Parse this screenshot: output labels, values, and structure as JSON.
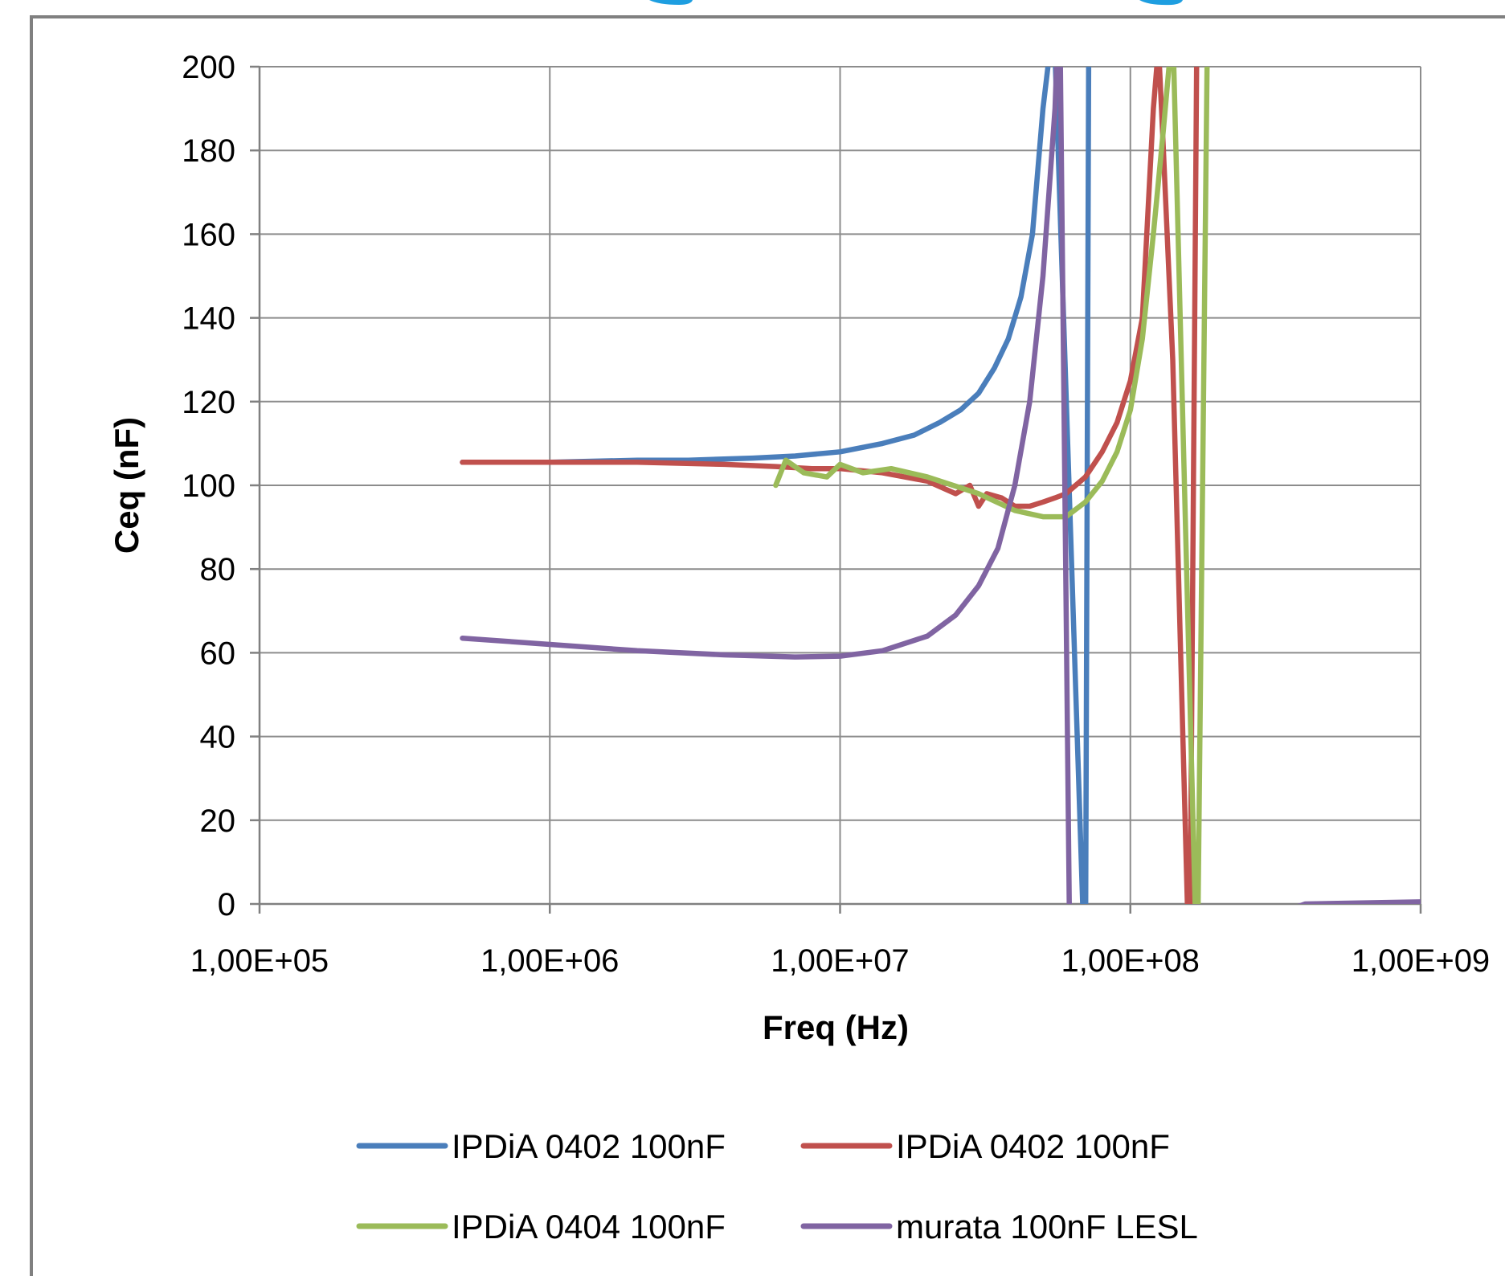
{
  "chart_data": {
    "type": "line",
    "title": "",
    "xlabel": "Freq (Hz)",
    "ylabel": "Ceq (nF)",
    "x_scale": "log",
    "xlim": [
      100000,
      1000000000
    ],
    "ylim": [
      0,
      200
    ],
    "x_ticks": [
      100000,
      1000000,
      10000000,
      100000000,
      1000000000
    ],
    "x_tick_labels": [
      "1,00E+05",
      "1,00E+06",
      "1,00E+07",
      "1,00E+08",
      "1,00E+09"
    ],
    "y_ticks": [
      0,
      20,
      40,
      60,
      80,
      100,
      120,
      140,
      160,
      180,
      200
    ],
    "y_tick_labels": [
      "0",
      "20",
      "40",
      "60",
      "80",
      "100",
      "120",
      "140",
      "160",
      "180",
      "200"
    ],
    "grid": true,
    "legend_position": "bottom",
    "series": [
      {
        "name": "IPDiA 0402 100nF",
        "color": "#4a7ebb",
        "x": [
          500000,
          700000,
          1000000,
          2000000,
          3000000,
          5000000,
          7000000,
          10000000,
          14000000,
          18000000,
          22000000,
          26000000,
          30000000,
          34000000,
          38000000,
          42000000,
          46000000,
          50000000,
          52000000,
          54000000,
          70000000,
          72000000
        ],
        "y": [
          105.5,
          105.5,
          105.5,
          106,
          106,
          106.5,
          107,
          108,
          110,
          112,
          115,
          118,
          122,
          128,
          135,
          145,
          160,
          190,
          200,
          220,
          -20,
          220
        ]
      },
      {
        "name": "IPDiA 0402 100nF",
        "color": "#c0504d",
        "x": [
          500000,
          1000000,
          2000000,
          4000000,
          6000000,
          8000000,
          10000000,
          14000000,
          20000000,
          25000000,
          28000000,
          30000000,
          32000000,
          36000000,
          40000000,
          45000000,
          50000000,
          55000000,
          60000000,
          70000000,
          80000000,
          90000000,
          100000000,
          110000000,
          120000000,
          125000000,
          130000000,
          140000000,
          160000000,
          170000000
        ],
        "y": [
          105.5,
          105.5,
          105.5,
          105,
          104.5,
          104,
          104,
          103,
          101,
          98,
          100,
          95,
          98,
          97,
          95,
          95,
          96,
          97,
          98,
          102,
          108,
          115,
          125,
          140,
          190,
          205,
          180,
          130,
          -20,
          220
        ]
      },
      {
        "name": "IPDiA 0404 100nF",
        "color": "#9bbb59",
        "x": [
          6000000,
          6500000,
          7500000,
          9000000,
          10000000,
          12000000,
          15000000,
          20000000,
          30000000,
          40000000,
          50000000,
          60000000,
          70000000,
          80000000,
          90000000,
          100000000,
          110000000,
          120000000,
          130000000,
          140000000,
          170000000,
          185000000
        ],
        "y": [
          100,
          106,
          103,
          102,
          105,
          103,
          104,
          102,
          98,
          94,
          92.5,
          92.5,
          96,
          101,
          108,
          118,
          135,
          160,
          185,
          210,
          -20,
          220
        ]
      },
      {
        "name": "murata 100nF LESL",
        "color": "#8064a2",
        "x": [
          500000,
          1000000,
          2000000,
          4000000,
          7000000,
          10000000,
          14000000,
          20000000,
          25000000,
          30000000,
          35000000,
          40000000,
          45000000,
          50000000,
          55000000,
          57000000,
          62000000,
          400000000,
          1000000000
        ],
        "y": [
          63.5,
          62,
          60.5,
          59.5,
          59,
          59.2,
          60.5,
          64,
          69,
          76,
          85,
          100,
          120,
          150,
          190,
          220,
          -20,
          0,
          0.5
        ]
      }
    ]
  },
  "colors": {
    "frame": "#808080",
    "grid": "#8c8c8c",
    "cyan_marks": "#1e9ee0"
  }
}
